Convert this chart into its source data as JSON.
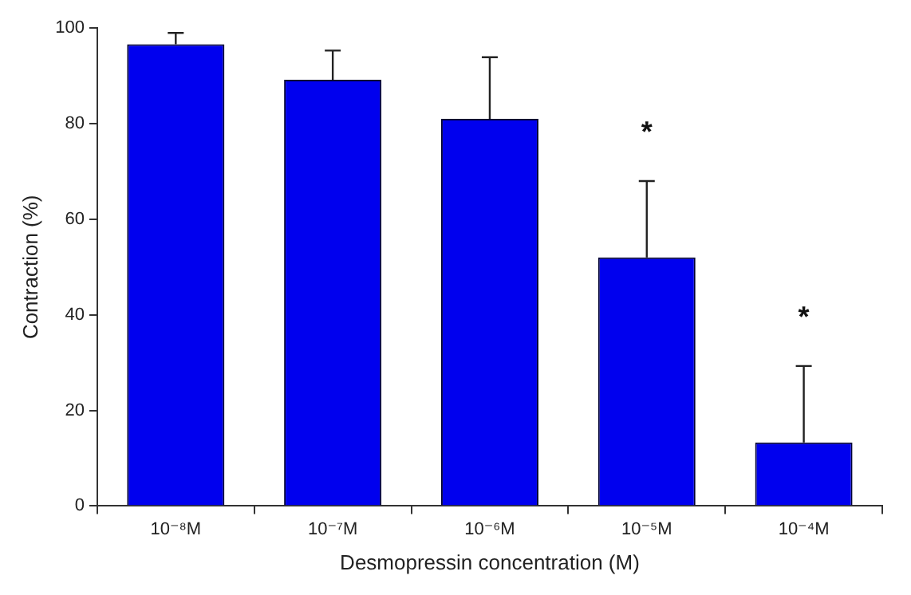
{
  "chart_data": {
    "type": "bar",
    "xlabel": "Desmopressin concentration (M)",
    "ylabel": "Contraction (%)",
    "categories": [
      "10⁻⁸M",
      "10⁻⁷M",
      "10⁻⁶M",
      "10⁻⁵M",
      "10⁻⁴M"
    ],
    "values": [
      96.6,
      89.2,
      81,
      52,
      13.3
    ],
    "errors": [
      2.4,
      6.1,
      12.9,
      16,
      16
    ],
    "color": "#0000ee",
    "annotations": [
      "*",
      "*"
    ],
    "ylim": [
      0,
      100
    ],
    "yticks": [
      0,
      20,
      40,
      60,
      80,
      100
    ],
    "grid": false,
    "legend": false
  }
}
